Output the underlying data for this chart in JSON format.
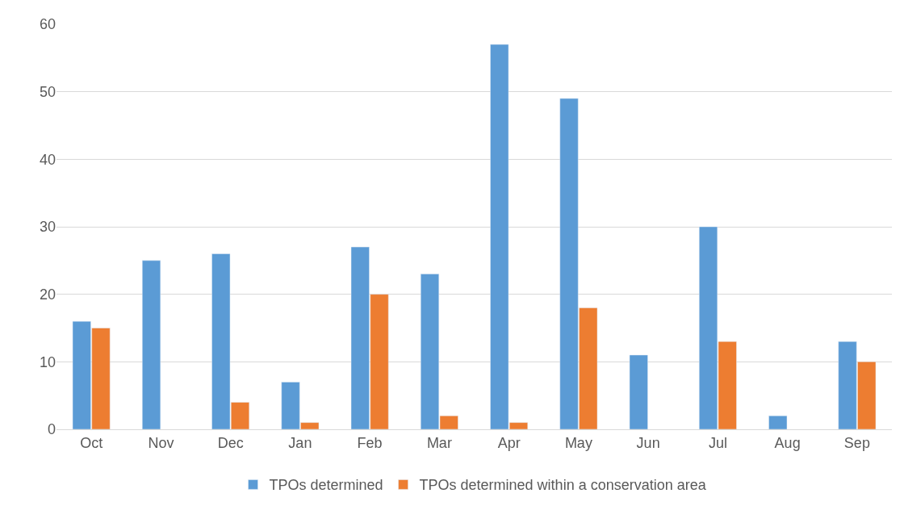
{
  "chart_data": {
    "type": "bar",
    "categories": [
      "Oct",
      "Nov",
      "Dec",
      "Jan",
      "Feb",
      "Mar",
      "Apr",
      "May",
      "Jun",
      "Jul",
      "Aug",
      "Sep"
    ],
    "series": [
      {
        "name": "TPOs determined",
        "color": "#5b9bd5",
        "values": [
          16,
          25,
          26,
          7,
          27,
          23,
          57,
          49,
          11,
          30,
          2,
          13
        ]
      },
      {
        "name": "TPOs determined within a conservation area",
        "color": "#ed7d31",
        "values": [
          15,
          null,
          4,
          1,
          20,
          2,
          1,
          18,
          null,
          13,
          null,
          10
        ]
      }
    ],
    "ylim": [
      0,
      60
    ],
    "yticks": [
      0,
      10,
      20,
      30,
      40,
      50,
      60
    ],
    "grid": "y",
    "legend": "bottom"
  }
}
